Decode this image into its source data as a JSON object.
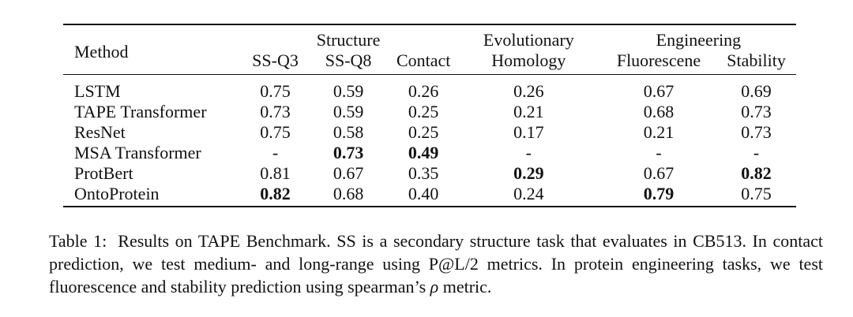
{
  "table": {
    "method_header": "Method",
    "groups": {
      "structure": "Structure",
      "evolutionary": "Evolutionary",
      "engineering": "Engineering"
    },
    "columns": [
      "SS-Q3",
      "SS-Q8",
      "Contact",
      "Homology",
      "Fluorescene",
      "Stability"
    ],
    "rows": [
      {
        "method": "LSTM",
        "values": [
          "0.75",
          "0.59",
          "0.26",
          "0.26",
          "0.67",
          "0.69"
        ],
        "bold": [
          false,
          false,
          false,
          false,
          false,
          false
        ]
      },
      {
        "method": "TAPE Transformer",
        "values": [
          "0.73",
          "0.59",
          "0.25",
          "0.21",
          "0.68",
          "0.73"
        ],
        "bold": [
          false,
          false,
          false,
          false,
          false,
          false
        ]
      },
      {
        "method": "ResNet",
        "values": [
          "0.75",
          "0.58",
          "0.25",
          "0.17",
          "0.21",
          "0.73"
        ],
        "bold": [
          false,
          false,
          false,
          false,
          false,
          false
        ]
      },
      {
        "method": "MSA Transformer",
        "values": [
          "-",
          "0.73",
          "0.49",
          "-",
          "-",
          "-"
        ],
        "bold": [
          false,
          true,
          true,
          false,
          false,
          false
        ]
      },
      {
        "method": "ProtBert",
        "values": [
          "0.81",
          "0.67",
          "0.35",
          "0.29",
          "0.67",
          "0.82"
        ],
        "bold": [
          false,
          false,
          false,
          true,
          false,
          true
        ]
      },
      {
        "method": "OntoProtein",
        "values": [
          "0.82",
          "0.68",
          "0.40",
          "0.24",
          "0.79",
          "0.75"
        ],
        "bold": [
          true,
          false,
          false,
          false,
          true,
          false
        ]
      }
    ]
  },
  "caption": {
    "label": "Table 1:",
    "text_before_rho": "Results on TAPE Benchmark. SS is a secondary structure task that evaluates in CB513. In contact prediction, we test medium- and long-range using P@L/2 metrics. In protein engineering tasks, we test fluorescence and stability prediction using spearman’s",
    "rho": "ρ",
    "text_after_rho": " metric."
  }
}
